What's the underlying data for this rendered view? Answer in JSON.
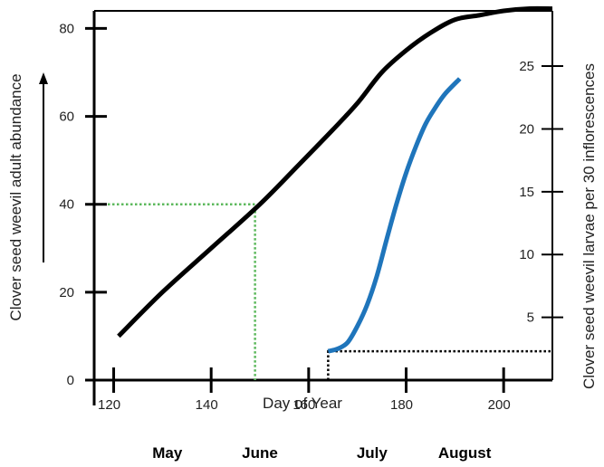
{
  "chart_data": {
    "type": "line",
    "title": "",
    "xlabel": "Day of Year",
    "ylabel_left": "Clover seed weevil adult abundance",
    "ylabel_right": "Clover seed weevil larvae per 30 inflorescences",
    "xlim": [
      116,
      210
    ],
    "ylim_left": [
      0,
      84
    ],
    "ylim_right": [
      0,
      29.4
    ],
    "x_ticks": [
      120,
      140,
      160,
      180,
      200
    ],
    "y_left_ticks": [
      0,
      20,
      40,
      60,
      80
    ],
    "y_right_ticks": [
      5,
      10,
      15,
      20,
      25
    ],
    "months": [
      "May",
      "June",
      "July",
      "August"
    ],
    "month_positions": [
      131,
      150,
      173,
      192
    ],
    "series": [
      {
        "axis": "left",
        "color": "#000000",
        "x": [
          121,
          130,
          140,
          150,
          158,
          165,
          170,
          175,
          180,
          185,
          190,
          195,
          200,
          205,
          210
        ],
        "y": [
          10,
          20,
          30,
          40,
          49,
          57,
          63,
          70,
          75,
          79,
          82,
          83,
          84,
          84.5,
          84.5
        ]
      },
      {
        "axis": "right",
        "color": "#1f75bb",
        "x": [
          164,
          166,
          168,
          170,
          172,
          174,
          176,
          178,
          180,
          182,
          184,
          186,
          188,
          191
        ],
        "y": [
          2.3,
          2.5,
          3.0,
          4.3,
          6.0,
          8.3,
          11.2,
          14.0,
          16.5,
          18.6,
          20.4,
          21.7,
          22.8,
          24.0
        ]
      }
    ],
    "guides": [
      {
        "color": "#5cb85c",
        "style": "dotted",
        "from_x": 116,
        "corner": [
          149,
          40
        ],
        "to_y": 0,
        "axis": "left"
      },
      {
        "color": "#000000",
        "style": "dotted",
        "from_x": 164,
        "corner": [
          164,
          2.3
        ],
        "to_x": 210,
        "axis": "right",
        "down_to_axis": true
      }
    ],
    "colors": {
      "axis": "#000000",
      "left_series": "#000000",
      "right_series": "#1f75bb",
      "left_guide": "#5cb85c",
      "right_guide": "#000000"
    },
    "arrow": {
      "direction": "up",
      "side": "left"
    }
  }
}
